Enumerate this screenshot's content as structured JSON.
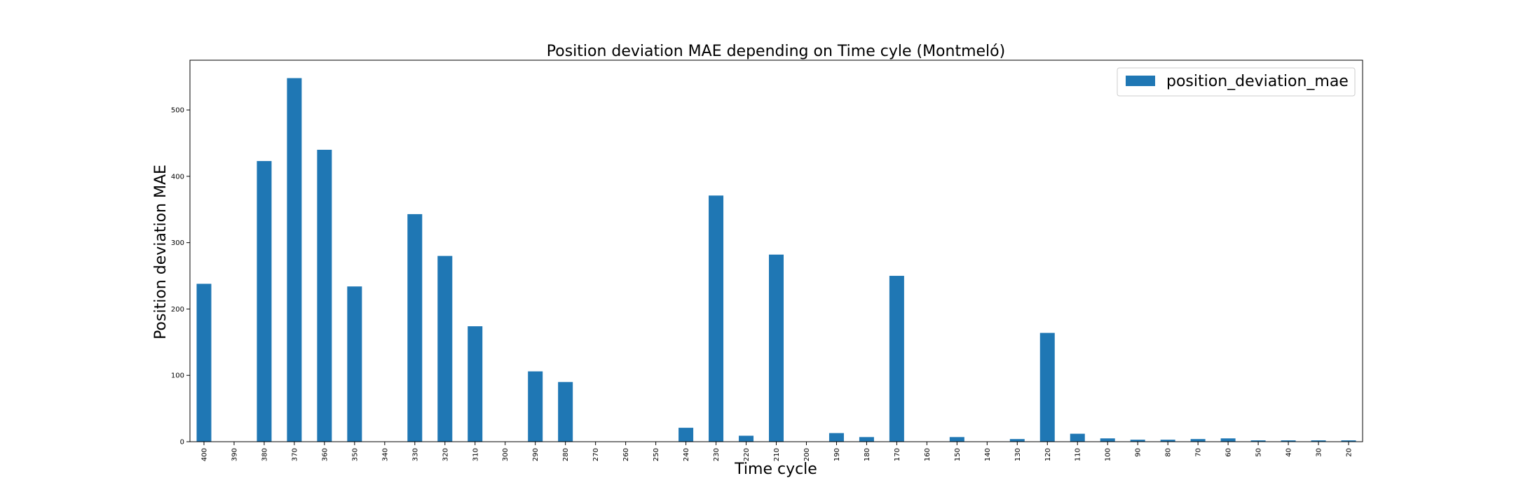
{
  "chart_data": {
    "type": "bar",
    "title": "Position deviation MAE depending on Time cyle (Montmeló)",
    "xlabel": "Time cycle",
    "ylabel": "Position deviation MAE",
    "categories": [
      "400",
      "390",
      "380",
      "370",
      "360",
      "350",
      "340",
      "330",
      "320",
      "310",
      "300",
      "290",
      "280",
      "270",
      "260",
      "250",
      "240",
      "230",
      "220",
      "210",
      "200",
      "190",
      "180",
      "170",
      "160",
      "150",
      "140",
      "130",
      "120",
      "110",
      "100",
      "90",
      "80",
      "70",
      "60",
      "50",
      "40",
      "30",
      "20"
    ],
    "series": [
      {
        "name": "position_deviation_mae",
        "color": "#1f77b4",
        "values": [
          238,
          0,
          423,
          548,
          440,
          234,
          0,
          343,
          280,
          174,
          0,
          106,
          90,
          0,
          0,
          0,
          21,
          371,
          9,
          282,
          0,
          13,
          7,
          250,
          0,
          7,
          0,
          4,
          164,
          12,
          5,
          3,
          3,
          4,
          5,
          2,
          2,
          2,
          2
        ]
      }
    ],
    "ylim": [
      0,
      575
    ],
    "yticks": [
      0,
      100,
      200,
      300,
      400,
      500
    ],
    "grid": false,
    "legend_position": "top-right"
  }
}
